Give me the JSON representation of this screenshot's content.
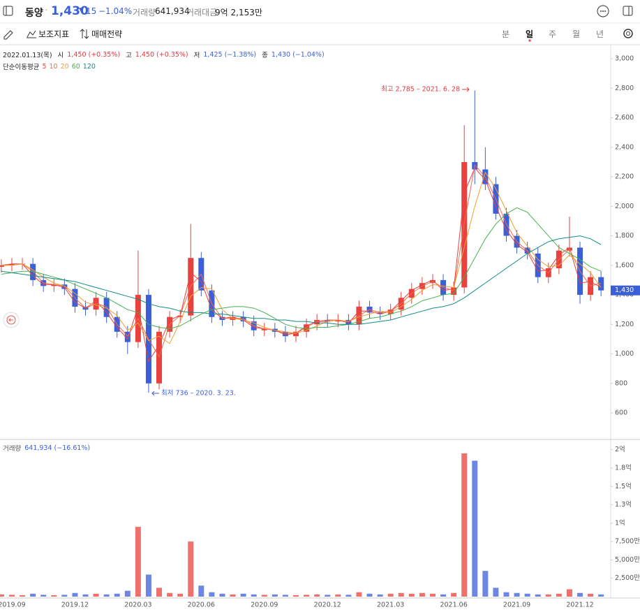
{
  "header": {
    "name": "동양",
    "price": "1,430",
    "change": "15",
    "change_pct": "−1.04%",
    "volume_label": "거래량",
    "volume": "641,934",
    "amount_label": "거래대금",
    "amount": "9억 2,153만"
  },
  "toolbar": {
    "indicators": "보조지표",
    "strategy": "매매전략",
    "periods": [
      "분",
      "일",
      "주",
      "월",
      "년"
    ],
    "selected_period": 1
  },
  "chart_data": [
    {
      "type": "candlestick",
      "date": "2022.01.13(목)",
      "ohlc_info": [
        {
          "label": "시",
          "text": "1,450 (+0.35%)",
          "color": "#e0383e"
        },
        {
          "label": "고",
          "text": "1,450 (+0.35%)",
          "color": "#e0383e"
        },
        {
          "label": "저",
          "text": "1,425 (−1.38%)",
          "color": "#3b5fd9"
        },
        {
          "label": "종",
          "text": "1,430 (−1.04%)",
          "color": "#3b5fd9"
        }
      ],
      "ma_title": "단순이동평균",
      "up_color": "#e8413e",
      "down_color": "#3b5fd9",
      "open": [
        1590,
        1600,
        1610,
        1610,
        1500,
        1460,
        1470,
        1440,
        1320,
        1300,
        1380,
        1250,
        1150,
        1080,
        1400,
        800,
        1150,
        1250,
        1260,
        1650,
        1430,
        1250,
        1230,
        1250,
        1220,
        1160,
        1170,
        1150,
        1120,
        1150,
        1200,
        1230,
        1220,
        1230,
        1200,
        1320,
        1280,
        1270,
        1300,
        1380,
        1440,
        1480,
        1500,
        1400,
        1450,
        2300,
        2250,
        2150,
        1950,
        1800,
        1720,
        1680,
        1520,
        1580,
        1700,
        1720,
        1400,
        1520
      ],
      "high": [
        1640,
        1650,
        1650,
        1650,
        1540,
        1510,
        1510,
        1480,
        1360,
        1420,
        1420,
        1290,
        1190,
        1700,
        1440,
        1190,
        1290,
        1300,
        1880,
        1690,
        1470,
        1290,
        1290,
        1290,
        1260,
        1210,
        1210,
        1190,
        1190,
        1240,
        1270,
        1270,
        1270,
        1270,
        1360,
        1360,
        1320,
        1340,
        1420,
        1480,
        1520,
        1540,
        1540,
        1490,
        2550,
        2785,
        2400,
        2200,
        1990,
        1840,
        1760,
        1720,
        1620,
        1740,
        1930,
        1760,
        1560,
        1560
      ],
      "low": [
        1550,
        1560,
        1570,
        1460,
        1420,
        1420,
        1400,
        1280,
        1260,
        1260,
        1210,
        1110,
        1000,
        1040,
        736,
        760,
        1110,
        1210,
        1220,
        1390,
        1210,
        1190,
        1190,
        1180,
        1120,
        1120,
        1110,
        1080,
        1080,
        1110,
        1160,
        1180,
        1180,
        1160,
        1160,
        1240,
        1230,
        1230,
        1260,
        1340,
        1400,
        1440,
        1360,
        1360,
        1410,
        2150,
        2110,
        1910,
        1760,
        1680,
        1640,
        1480,
        1480,
        1540,
        1660,
        1340,
        1360,
        1390
      ],
      "close": [
        1600,
        1610,
        1610,
        1500,
        1460,
        1470,
        1440,
        1320,
        1300,
        1380,
        1250,
        1150,
        1080,
        1400,
        800,
        1150,
        1250,
        1260,
        1650,
        1430,
        1250,
        1230,
        1250,
        1220,
        1160,
        1170,
        1150,
        1120,
        1150,
        1200,
        1230,
        1220,
        1230,
        1200,
        1320,
        1280,
        1270,
        1300,
        1380,
        1440,
        1480,
        1500,
        1400,
        1450,
        2300,
        2250,
        2150,
        1950,
        1800,
        1720,
        1680,
        1520,
        1580,
        1700,
        1720,
        1400,
        1520,
        1430
      ],
      "series": [
        {
          "name": "5",
          "color": "#e8413e",
          "values": [
            1600,
            1610,
            1610,
            1530,
            1470,
            1470,
            1450,
            1350,
            1310,
            1360,
            1280,
            1180,
            1100,
            1320,
            950,
            1060,
            1230,
            1260,
            1550,
            1490,
            1300,
            1240,
            1250,
            1230,
            1180,
            1170,
            1160,
            1130,
            1140,
            1190,
            1220,
            1220,
            1230,
            1210,
            1290,
            1290,
            1270,
            1290,
            1360,
            1430,
            1470,
            1500,
            1430,
            1440,
            2090,
            2260,
            2180,
            2000,
            1840,
            1740,
            1690,
            1560,
            1570,
            1670,
            1720,
            1480,
            1490,
            1450
          ]
        },
        {
          "name": "10",
          "color": "#f26a4b",
          "values": [
            1600,
            1600,
            1610,
            1560,
            1480,
            1470,
            1460,
            1380,
            1310,
            1340,
            1320,
            1200,
            1120,
            1240,
            1100,
            980,
            1200,
            1260,
            1460,
            1540,
            1340,
            1240,
            1240,
            1240,
            1190,
            1170,
            1160,
            1140,
            1140,
            1180,
            1220,
            1230,
            1230,
            1220,
            1260,
            1300,
            1280,
            1290,
            1340,
            1410,
            1460,
            1490,
            1450,
            1430,
            1880,
            2280,
            2200,
            2050,
            1880,
            1760,
            1700,
            1600,
            1550,
            1640,
            1710,
            1560,
            1460,
            1480
          ]
        },
        {
          "name": "20",
          "color": "#f0a030",
          "values": [
            1600,
            1600,
            1610,
            1570,
            1520,
            1480,
            1460,
            1410,
            1350,
            1330,
            1310,
            1260,
            1160,
            1210,
            1090,
            1120,
            1070,
            1220,
            1390,
            1450,
            1440,
            1300,
            1240,
            1230,
            1210,
            1180,
            1160,
            1150,
            1140,
            1160,
            1190,
            1220,
            1230,
            1220,
            1250,
            1270,
            1290,
            1280,
            1320,
            1370,
            1430,
            1470,
            1460,
            1450,
            1720,
            2000,
            2230,
            2120,
            1970,
            1820,
            1730,
            1640,
            1590,
            1600,
            1670,
            1610,
            1550,
            1450
          ]
        },
        {
          "name": "60",
          "color": "#45b24f",
          "values": [
            1540,
            1550,
            1560,
            1560,
            1540,
            1520,
            1500,
            1470,
            1440,
            1410,
            1380,
            1340,
            1300,
            1280,
            1200,
            1180,
            1170,
            1190,
            1230,
            1270,
            1300,
            1310,
            1320,
            1320,
            1310,
            1280,
            1240,
            1200,
            1180,
            1170,
            1180,
            1180,
            1190,
            1200,
            1220,
            1240,
            1250,
            1270,
            1290,
            1320,
            1360,
            1380,
            1400,
            1410,
            1520,
            1650,
            1780,
            1880,
            1950,
            1990,
            1960,
            1880,
            1800,
            1720,
            1680,
            1640,
            1590,
            1560
          ]
        },
        {
          "name": "120",
          "color": "#138a87",
          "values": [
            1560,
            1550,
            1540,
            1530,
            1520,
            1510,
            1500,
            1490,
            1470,
            1450,
            1430,
            1410,
            1390,
            1370,
            1340,
            1320,
            1310,
            1290,
            1280,
            1280,
            1270,
            1270,
            1260,
            1250,
            1240,
            1240,
            1230,
            1230,
            1220,
            1220,
            1210,
            1210,
            1200,
            1200,
            1200,
            1210,
            1220,
            1230,
            1250,
            1270,
            1290,
            1310,
            1320,
            1340,
            1380,
            1430,
            1480,
            1530,
            1580,
            1630,
            1680,
            1720,
            1760,
            1780,
            1790,
            1800,
            1780,
            1740
          ]
        }
      ],
      "ylim": [
        425,
        3095
      ],
      "yticks": [
        600,
        800,
        {
          "value": 1000,
          "label": "1,000"
        },
        {
          "value": 1200,
          "label": "1,200"
        },
        {
          "value": 1400,
          "label": "1,400"
        },
        {
          "value": 1600,
          "label": "1,600"
        },
        {
          "value": 1800,
          "label": "1,800"
        },
        {
          "value": 2000,
          "label": "2,000"
        },
        {
          "value": 2200,
          "label": "2,200"
        },
        {
          "value": 2400,
          "label": "2,400"
        },
        {
          "value": 2600,
          "label": "2,600"
        },
        {
          "value": 2800,
          "label": "2,800"
        },
        {
          "value": 3000,
          "label": "3,000"
        }
      ],
      "grid": false,
      "last_label": "1,430",
      "annotations": [
        {
          "text": "최고 2,785 – 2021. 6. 28",
          "color": "#e0383e"
        },
        {
          "text": "최저 736 – 2020. 3. 23.",
          "color": "#3b5fd9"
        }
      ]
    },
    {
      "type": "bar",
      "title": "거래량",
      "subtitle": "641,934 (−16.61%)",
      "categories": [
        null,
        "2019.09",
        null,
        null,
        null,
        null,
        null,
        "2019.12",
        null,
        null,
        null,
        null,
        null,
        "2020.03",
        null,
        null,
        null,
        null,
        null,
        "2020.06",
        null,
        null,
        null,
        null,
        null,
        "2020.09",
        null,
        null,
        null,
        null,
        null,
        "2020.12",
        null,
        null,
        null,
        null,
        null,
        "2021.03",
        null,
        null,
        null,
        null,
        null,
        "2021.06",
        null,
        null,
        null,
        null,
        null,
        "2021.09",
        null,
        null,
        null,
        null,
        null,
        "2021.12",
        null,
        null
      ],
      "values": [
        3000000,
        2500000,
        2000000,
        4000000,
        2500000,
        2000000,
        2500000,
        5000000,
        3000000,
        4000000,
        3000000,
        4000000,
        8000000,
        95000000,
        30000000,
        12000000,
        5000000,
        4000000,
        75000000,
        15000000,
        6000000,
        4000000,
        3000000,
        4000000,
        3000000,
        2500000,
        3000000,
        2500000,
        2000000,
        2500000,
        3000000,
        2500000,
        3000000,
        2500000,
        6000000,
        4000000,
        3000000,
        4000000,
        5000000,
        4000000,
        5000000,
        4000000,
        3000000,
        5000000,
        195000000,
        185000000,
        35000000,
        12000000,
        6000000,
        5000000,
        4000000,
        3000000,
        3000000,
        4000000,
        10000000,
        5000000,
        4000000,
        3000000
      ],
      "ylim": [
        0,
        213000000
      ],
      "yticks": [
        {
          "value": 25000000,
          "label": "2,500만"
        },
        {
          "value": 50000000,
          "label": "5,000만"
        },
        {
          "value": 75000000,
          "label": "7,500만"
        },
        {
          "value": 100000000,
          "label": "1억"
        },
        {
          "value": 125000000,
          "label": "1.3억"
        },
        {
          "value": 150000000,
          "label": "1.5억"
        },
        {
          "value": 175000000,
          "label": "1.8억"
        },
        {
          "value": 200000000,
          "label": "2억"
        }
      ]
    }
  ]
}
